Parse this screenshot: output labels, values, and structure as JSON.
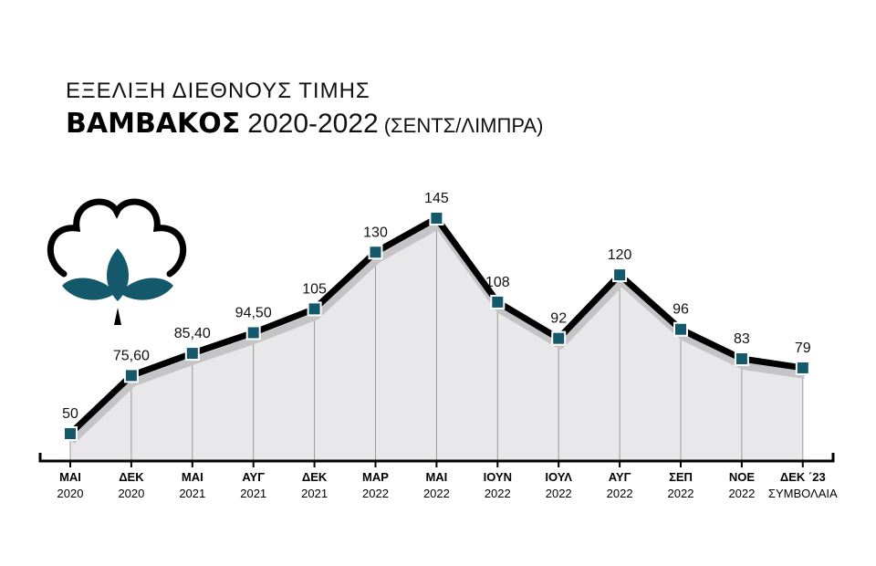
{
  "header": {
    "subtitle": "ΕΞΕΛΙΞΗ ΔΙΕΘΝΟΥΣ ΤΙΜΗΣ",
    "title": "ΒΑΜΒΑΚΟΣ",
    "years": "2020-2022",
    "unit": "(ΣΕΝΤΣ/ΛΙΜΠΡΑ)"
  },
  "logo_icon": "cotton-boll-icon",
  "colors": {
    "marker": "#14586b",
    "line": "#000000",
    "area": "#e8e8ea",
    "logo_leaf": "#14586b"
  },
  "chart_data": {
    "type": "line",
    "title": "ΒΑΜΒΑΚΟΣ 2020-2022 (ΣΕΝΤΣ/ΛΙΜΠΡΑ)",
    "categories": [
      [
        "ΜΑΙ",
        "2020"
      ],
      [
        "ΔΕΚ",
        "2020"
      ],
      [
        "ΜΑΙ",
        "2021"
      ],
      [
        "ΑΥΓ",
        "2021"
      ],
      [
        "ΔΕΚ",
        "2021"
      ],
      [
        "ΜΑΡ",
        "2022"
      ],
      [
        "ΜΑΙ",
        "2022"
      ],
      [
        "ΙΟΥΝ",
        "2022"
      ],
      [
        "ΙΟΥΛ",
        "2022"
      ],
      [
        "ΑΥΓ",
        "2022"
      ],
      [
        "ΣΕΠ",
        "2022"
      ],
      [
        "ΝΟΕ",
        "2022"
      ],
      [
        "ΔΕΚ ΄23",
        "ΣΥΜΒΟΛΑΙΑ"
      ]
    ],
    "values": [
      50,
      75.6,
      85.4,
      94.5,
      105,
      130,
      145,
      108,
      92,
      120,
      96,
      83,
      79
    ],
    "labels": [
      "50",
      "75,60",
      "85,40",
      "94,50",
      "105",
      "130",
      "145",
      "108",
      "92",
      "120",
      "96",
      "83",
      "79"
    ],
    "xlabel": "",
    "ylabel": "",
    "grid": false,
    "area_fill": true
  }
}
